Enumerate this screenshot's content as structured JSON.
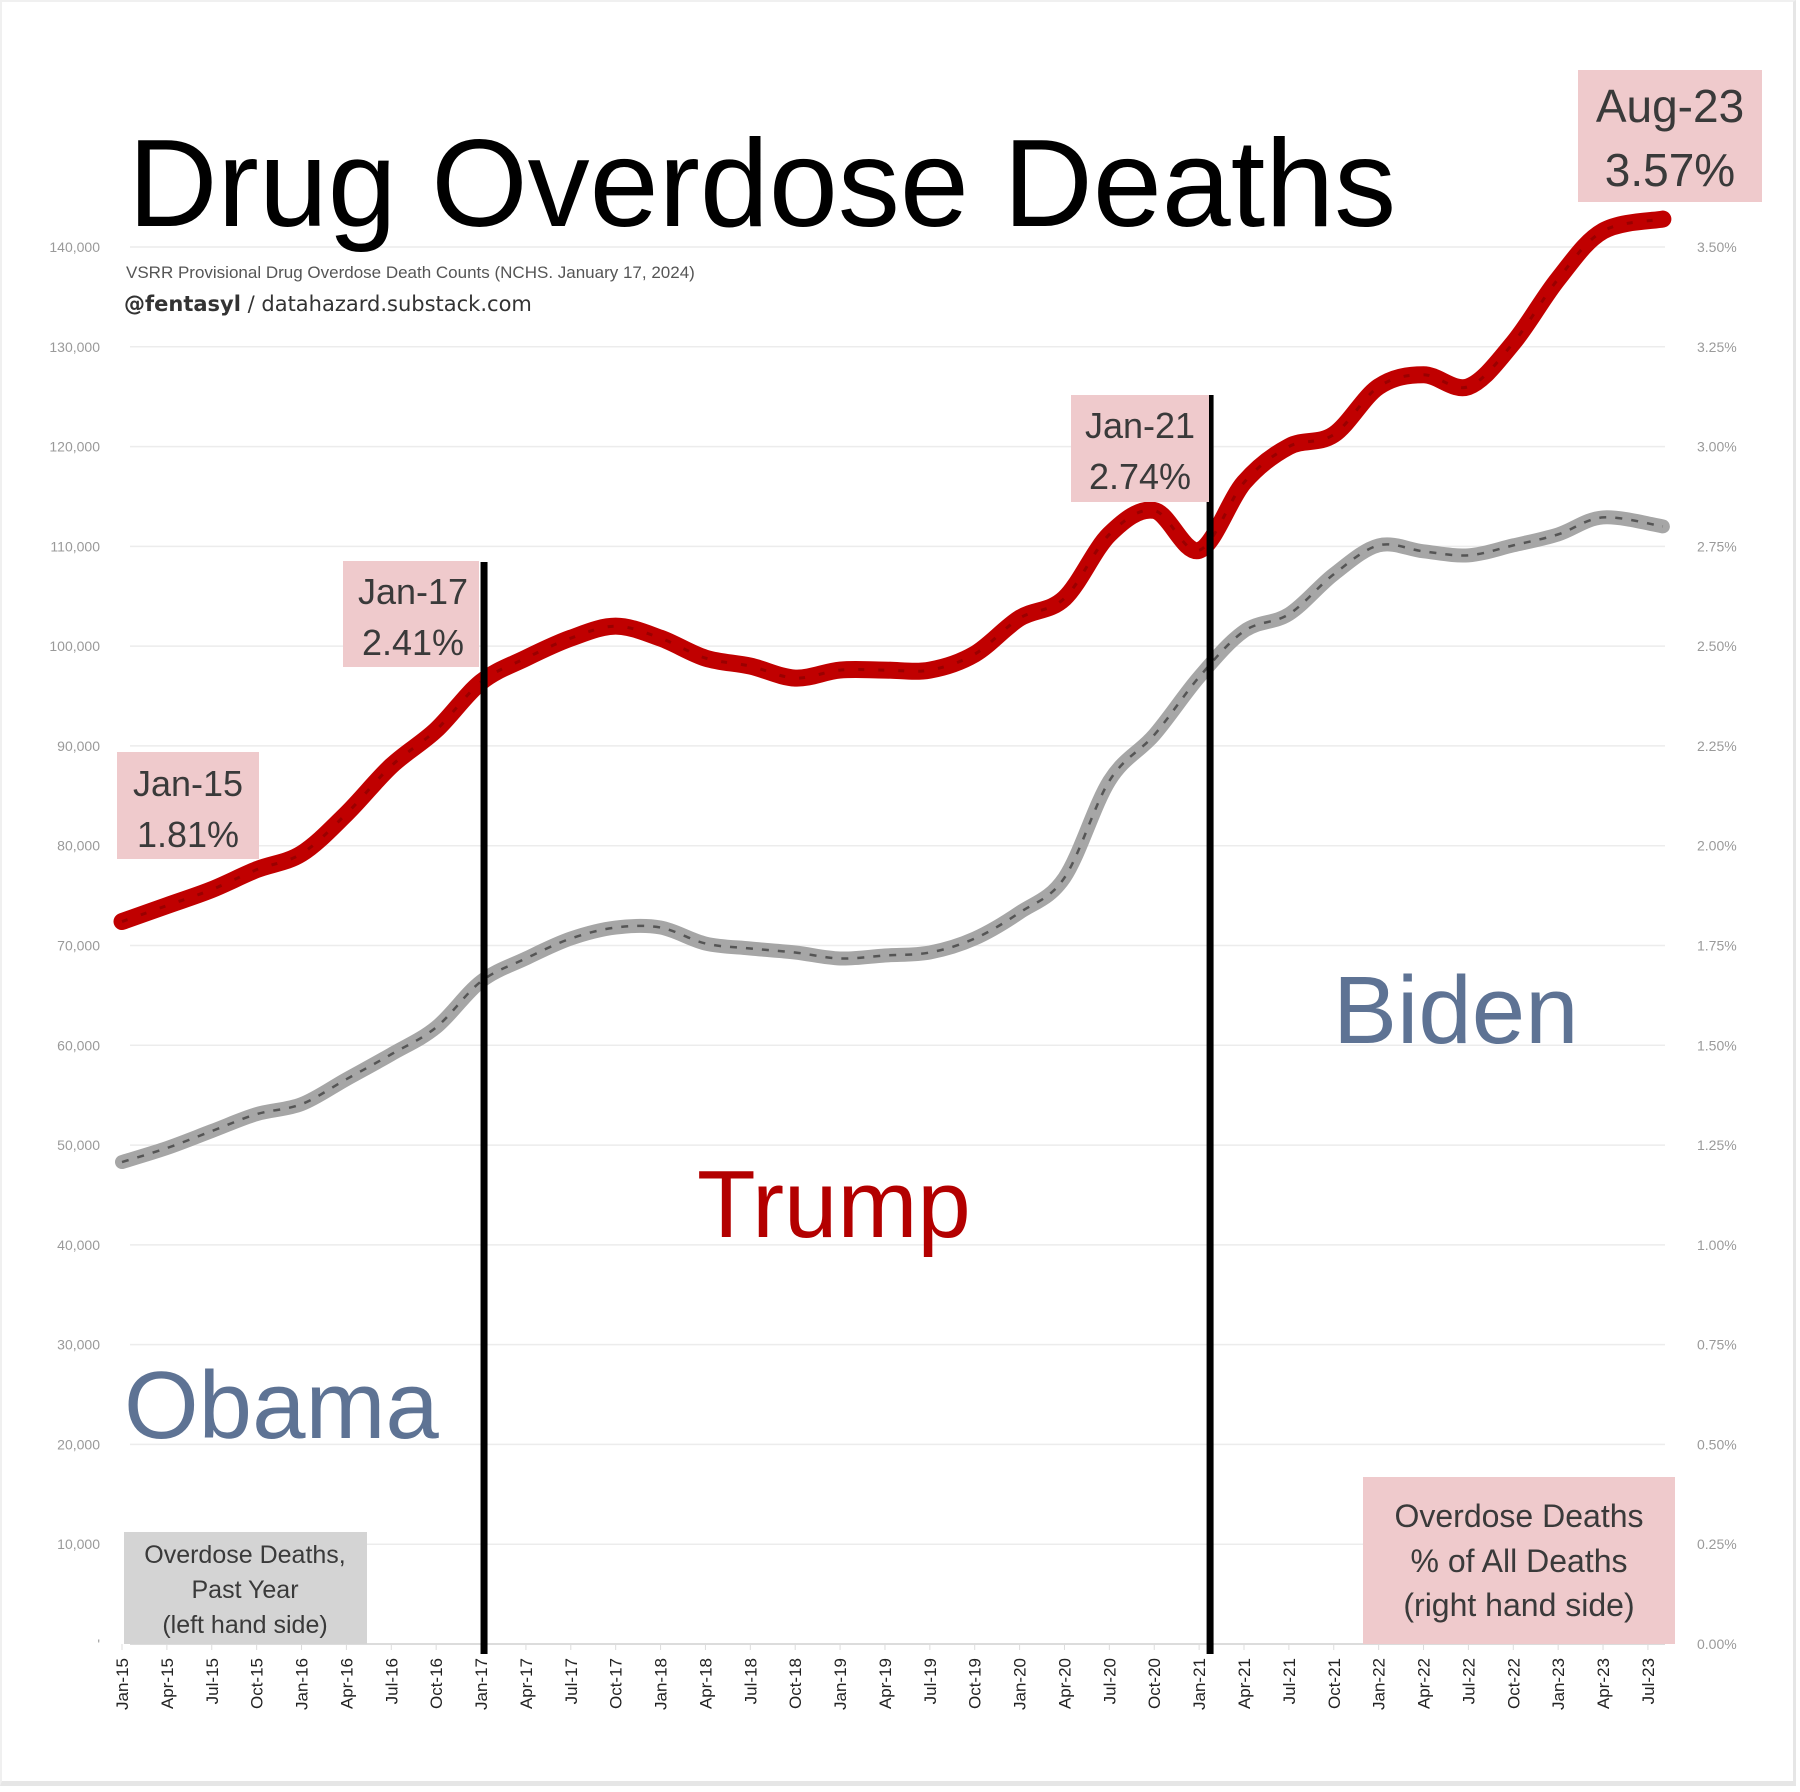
{
  "chart_data": {
    "type": "line",
    "title": "Drug Overdose Deaths",
    "subtitle": "VSRR Provisional Drug Overdose Death Counts (NCHS. January 17, 2024)",
    "byline_handle": "@fentasyl",
    "byline_sep": " / ",
    "byline_site": "datahazard.substack.com",
    "x_labels": [
      "Jan-15",
      "Apr-15",
      "Jul-15",
      "Oct-15",
      "Jan-16",
      "Apr-16",
      "Jul-16",
      "Oct-16",
      "Jan-17",
      "Apr-17",
      "Jul-17",
      "Oct-17",
      "Jan-18",
      "Apr-18",
      "Jul-18",
      "Oct-18",
      "Jan-19",
      "Apr-19",
      "Jul-19",
      "Oct-19",
      "Jan-20",
      "Apr-20",
      "Jul-20",
      "Oct-20",
      "Jan-21",
      "Apr-21",
      "Jul-21",
      "Oct-21",
      "Jan-22",
      "Apr-22",
      "Jul-22",
      "Oct-22",
      "Jan-23",
      "Apr-23",
      "Jul-23"
    ],
    "x_label_month_index": [
      0,
      3,
      6,
      9,
      12,
      15,
      18,
      21,
      24,
      27,
      30,
      33,
      36,
      39,
      42,
      45,
      48,
      51,
      54,
      57,
      60,
      63,
      66,
      69,
      72,
      75,
      78,
      81,
      84,
      87,
      90,
      93,
      96,
      99,
      102
    ],
    "x_month_range": [
      0,
      103
    ],
    "left_axis": {
      "label": "Overdose Deaths, Past Year",
      "ylim": [
        0,
        140000
      ],
      "ticks": [
        0,
        10000,
        20000,
        30000,
        40000,
        50000,
        60000,
        70000,
        80000,
        90000,
        100000,
        110000,
        120000,
        130000,
        140000
      ],
      "tick_labels": [
        "'",
        "10,000",
        "20,000",
        "30,000",
        "40,000",
        "50,000",
        "60,000",
        "70,000",
        "80,000",
        "90,000",
        "100,000",
        "110,000",
        "120,000",
        "130,000",
        "140,000"
      ]
    },
    "right_axis": {
      "label": "Overdose Deaths % of All Deaths",
      "ylim": [
        0,
        3.5
      ],
      "tick_labels": [
        "0.00%",
        "0.25%",
        "0.50%",
        "0.75%",
        "1.00%",
        "1.25%",
        "1.50%",
        "1.75%",
        "2.00%",
        "2.25%",
        "2.50%",
        "2.75%",
        "3.00%",
        "3.25%",
        "3.50%"
      ]
    },
    "grid": true,
    "series": [
      {
        "name": "Overdose Deaths, Past Year",
        "axis": "left",
        "color": "#a6a6a6",
        "month_index": [
          0,
          3,
          6,
          9,
          12,
          15,
          18,
          21,
          24,
          27,
          30,
          33,
          36,
          39,
          42,
          45,
          48,
          51,
          54,
          57,
          60,
          63,
          66,
          69,
          72,
          75,
          78,
          81,
          84,
          87,
          90,
          93,
          96,
          99,
          103
        ],
        "values": [
          48300,
          49700,
          51400,
          53100,
          54100,
          56600,
          59100,
          61800,
          66400,
          68700,
          70700,
          71800,
          71800,
          70200,
          69700,
          69300,
          68700,
          69000,
          69300,
          70700,
          73300,
          76800,
          86500,
          91100,
          96900,
          101500,
          103200,
          107200,
          110100,
          109500,
          109100,
          110100,
          111200,
          112900,
          112000
        ]
      },
      {
        "name": "Overdose Deaths % of All Deaths",
        "axis": "right",
        "color": "#c00000",
        "month_index": [
          0,
          3,
          6,
          9,
          12,
          15,
          18,
          21,
          24,
          27,
          30,
          33,
          36,
          39,
          42,
          45,
          48,
          51,
          54,
          57,
          60,
          63,
          66,
          69,
          72,
          75,
          78,
          81,
          84,
          87,
          90,
          93,
          96,
          99,
          103
        ],
        "values": [
          1.81,
          1.85,
          1.89,
          1.94,
          1.98,
          2.08,
          2.2,
          2.29,
          2.41,
          2.47,
          2.52,
          2.55,
          2.52,
          2.47,
          2.45,
          2.42,
          2.44,
          2.44,
          2.44,
          2.48,
          2.57,
          2.62,
          2.78,
          2.84,
          2.74,
          2.91,
          3.0,
          3.03,
          3.15,
          3.18,
          3.15,
          3.26,
          3.42,
          3.54,
          3.57
        ]
      }
    ],
    "vertical_lines": [
      {
        "name": "obama-trump-divider",
        "month_index": 24
      },
      {
        "name": "trump-biden-divider",
        "month_index": 73
      }
    ],
    "annotations": [
      {
        "line1": "Jan-15",
        "line2": "1.81%"
      },
      {
        "line1": "Jan-17",
        "line2": "2.41%"
      },
      {
        "line1": "Jan-21",
        "line2": "2.74%"
      },
      {
        "line1": "Aug-23",
        "line2": "3.57%"
      }
    ],
    "eras": [
      {
        "label": "Obama",
        "color": "#5e7394"
      },
      {
        "label": "Trump",
        "color": "#b30000"
      },
      {
        "label": "Biden",
        "color": "#5e7394"
      }
    ],
    "legend_left": {
      "lines": [
        "Overdose Deaths,",
        "Past Year",
        "(left hand side)"
      ],
      "color": "#d4d4d4"
    },
    "legend_right": {
      "lines": [
        "Overdose Deaths",
        "% of All Deaths",
        "(right hand side)"
      ],
      "color": "#efcacc"
    }
  }
}
